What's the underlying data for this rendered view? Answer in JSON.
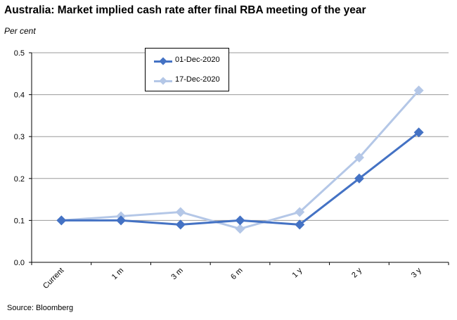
{
  "title": "Australia: Market implied cash rate after final RBA meeting of the year",
  "unit_label": "Per cent",
  "source": "Source: Bloomberg",
  "colors": {
    "series1": "#4472c4",
    "series2": "#b4c7e7",
    "grid": "#9a9a9a",
    "axis": "#000000"
  },
  "chart_data": {
    "type": "line",
    "categories": [
      "Current",
      "1 m",
      "3 m",
      "6 m",
      "1 y",
      "2 y",
      "3 y"
    ],
    "series": [
      {
        "name": "01-Dec-2020",
        "values": [
          0.1,
          0.1,
          0.09,
          0.1,
          0.09,
          0.2,
          0.31
        ]
      },
      {
        "name": "17-Dec-2020",
        "values": [
          0.1,
          0.11,
          0.12,
          0.08,
          0.12,
          0.25,
          0.41
        ]
      }
    ],
    "ylim": [
      0,
      0.5
    ],
    "yticks": [
      "0.0",
      "0.1",
      "0.2",
      "0.3",
      "0.4",
      "0.5"
    ],
    "ylabel": "Per cent",
    "grid": true,
    "legend": "top-left",
    "marker": "diamond"
  }
}
